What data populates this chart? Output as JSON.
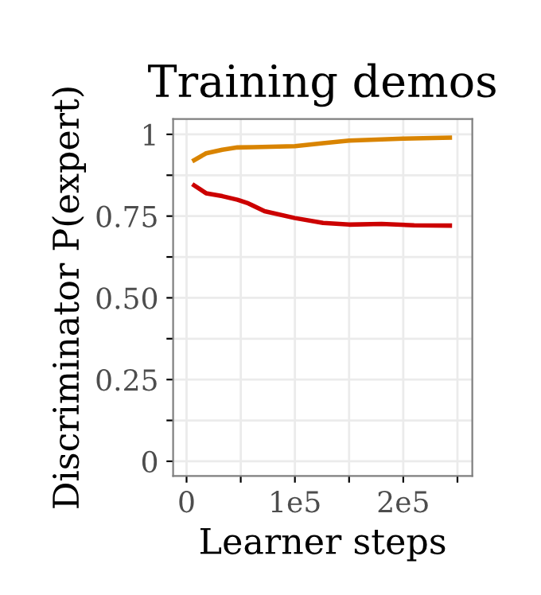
{
  "chart_data": {
    "type": "line",
    "title": "Training demos",
    "xlabel": "Learner steps",
    "ylabel": "Discriminator P(expert)",
    "series": [
      {
        "color": "#d98400",
        "x": [
          7000,
          18000,
          33000,
          47000,
          62000,
          100000,
          126000,
          150000,
          200000,
          243000
        ],
        "values": [
          0.921,
          0.942,
          0.953,
          0.96,
          0.961,
          0.964,
          0.973,
          0.981,
          0.987,
          0.99
        ]
      },
      {
        "color": "#cc0000",
        "x": [
          7000,
          18000,
          33000,
          47000,
          57000,
          72000,
          100000,
          126000,
          150000,
          180000,
          210000,
          243000
        ],
        "values": [
          0.844,
          0.82,
          0.811,
          0.8,
          0.789,
          0.765,
          0.744,
          0.729,
          0.724,
          0.726,
          0.722,
          0.721
        ]
      }
    ],
    "xlim": [
      -12400,
      263700
    ],
    "ylim": [
      -0.045,
      1.047
    ],
    "xticks": [
      0,
      {
        "value": 50000,
        "label": null
      },
      {
        "value": 100000,
        "label": "1e5"
      },
      {
        "value": 150000,
        "label": null
      },
      {
        "value": 200000,
        "label": "2e5"
      },
      {
        "value": 250000,
        "label": null
      }
    ],
    "yticks": [
      0,
      {
        "value": 0.125,
        "label": null
      },
      {
        "value": 0.25,
        "label": "0.25"
      },
      {
        "value": 0.375,
        "label": null
      },
      {
        "value": 0.5,
        "label": "0.50"
      },
      {
        "value": 0.625,
        "label": null
      },
      {
        "value": 0.75,
        "label": "0.75"
      },
      {
        "value": 0.875,
        "label": null
      },
      1
    ],
    "grid": true,
    "marker": "none",
    "line_style": "solid"
  }
}
